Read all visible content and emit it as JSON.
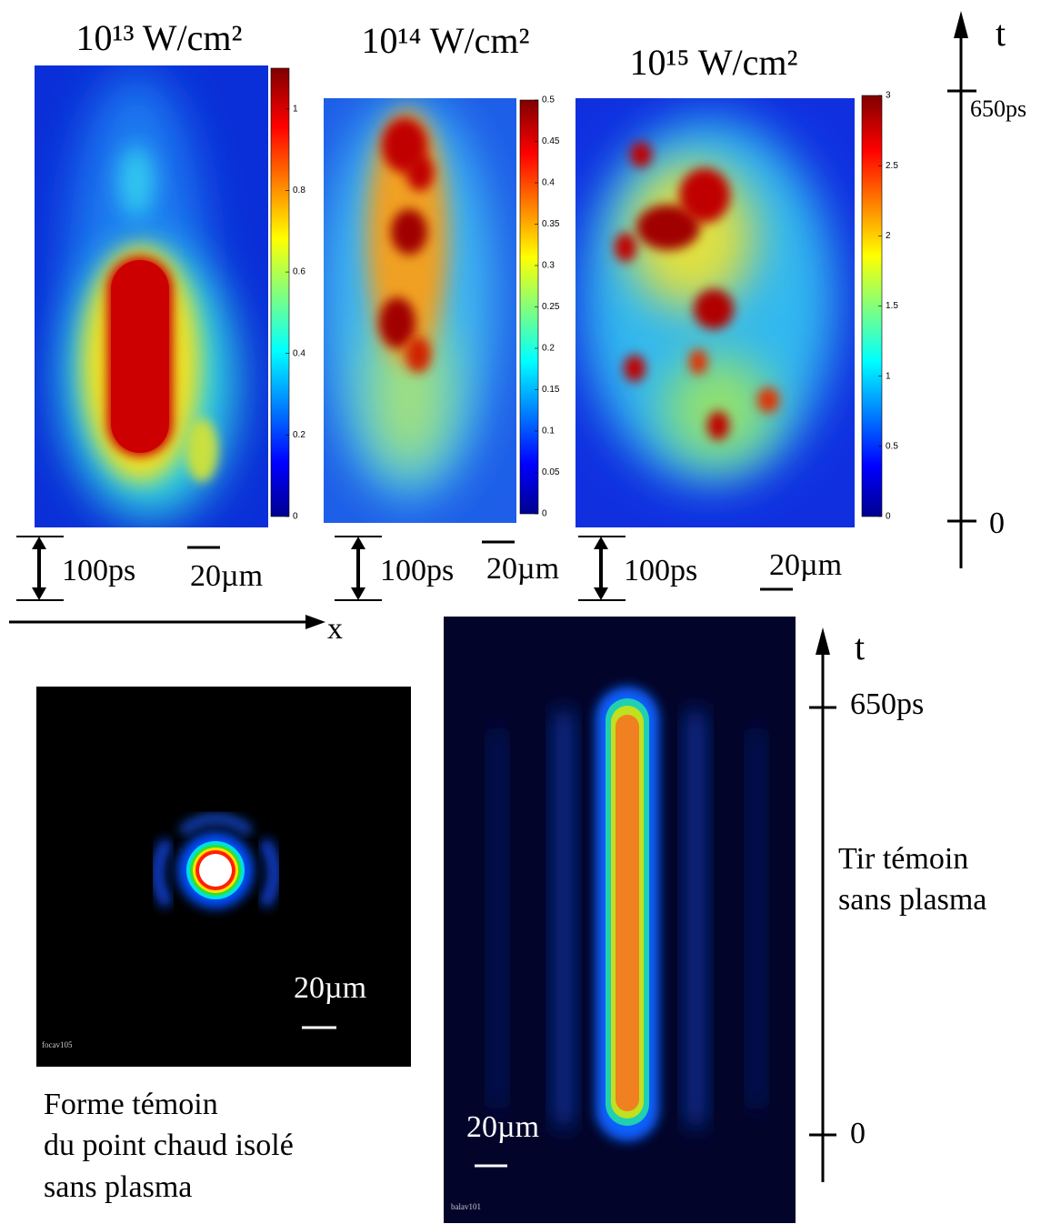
{
  "panels": [
    {
      "title": "10¹³ W/cm²",
      "time_scale": "100ps",
      "length_scale": "20µm",
      "colorbar": {
        "lim": [
          0,
          1.1
        ],
        "ticks": [
          0,
          0.2,
          0.4,
          0.6,
          0.8,
          1
        ]
      }
    },
    {
      "title": "10¹⁴ W/cm²",
      "time_scale": "100ps",
      "length_scale": "20µm",
      "colorbar": {
        "lim": [
          0,
          0.5
        ],
        "ticks": [
          0,
          0.05,
          0.1,
          0.15,
          0.2,
          0.25,
          0.3,
          0.35,
          0.4,
          0.45,
          0.5
        ]
      }
    },
    {
      "title": "10¹⁵ W/cm²",
      "time_scale": "100ps",
      "length_scale": "20µm",
      "colorbar": {
        "lim": [
          0,
          3
        ],
        "ticks": [
          0,
          0.5,
          1,
          1.5,
          2,
          2.5,
          3
        ]
      }
    }
  ],
  "time_axis": {
    "label": "t",
    "top": "650ps",
    "bottom": "0"
  },
  "x_axis": {
    "label": "x"
  },
  "focal_spot": {
    "scale": "20µm",
    "id": "focav105",
    "caption": [
      "Forme témoin",
      "du point chaud isolé",
      "sans plasma"
    ]
  },
  "streak": {
    "scale": "20µm",
    "id": "balav101",
    "axis": {
      "label": "t",
      "top": "650ps",
      "bottom": "0"
    },
    "caption": [
      "Tir témoin",
      "sans plasma"
    ]
  }
}
